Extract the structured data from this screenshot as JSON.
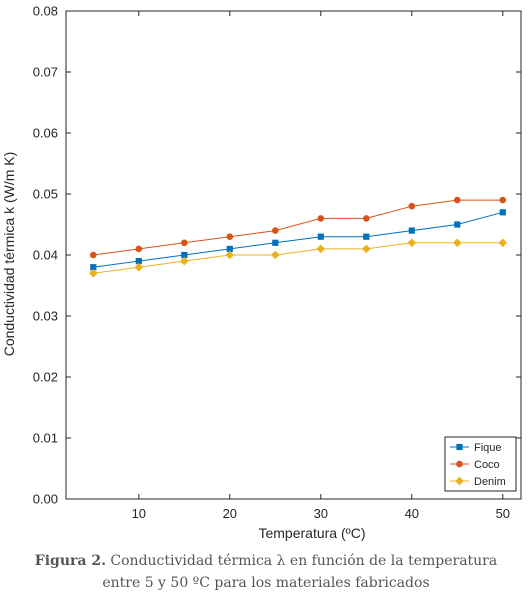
{
  "chart_data": {
    "type": "line",
    "title": "",
    "xlabel": "Temperatura (ºC)",
    "ylabel": "Conductividad térmica k (W/m   K)",
    "xlim": [
      2,
      52
    ],
    "ylim": [
      0,
      0.08
    ],
    "xticks": [
      10,
      20,
      30,
      40,
      50
    ],
    "yticks": [
      0.0,
      0.01,
      0.02,
      0.03,
      0.04,
      0.05,
      0.06,
      0.07,
      0.08
    ],
    "ytick_labels": [
      "0.00",
      "0.01",
      "0.02",
      "0.03",
      "0.04",
      "0.05",
      "0.06",
      "0.07",
      "0.08"
    ],
    "grid": false,
    "legend_position": "bottom-right",
    "x": [
      5,
      10,
      15,
      20,
      25,
      30,
      35,
      40,
      45,
      50
    ],
    "series": [
      {
        "name": "Fique",
        "color": "#0072BD",
        "marker": "square",
        "values": [
          0.038,
          0.039,
          0.04,
          0.041,
          0.042,
          0.043,
          0.043,
          0.044,
          0.045,
          0.047
        ]
      },
      {
        "name": "Coco",
        "color": "#D95319",
        "marker": "circle",
        "values": [
          0.04,
          0.041,
          0.042,
          0.043,
          0.044,
          0.046,
          0.046,
          0.048,
          0.049,
          0.049
        ]
      },
      {
        "name": "Denim",
        "color": "#EDB120",
        "marker": "diamond",
        "values": [
          0.037,
          0.038,
          0.039,
          0.04,
          0.04,
          0.041,
          0.041,
          0.042,
          0.042,
          0.042
        ]
      }
    ]
  },
  "caption": {
    "figure_number": "Figura 2.",
    "line1": "Conductividad térmica λ en función de la temperatura",
    "line2": "entre 5 y 50 ºC para los materiales fabricados"
  }
}
